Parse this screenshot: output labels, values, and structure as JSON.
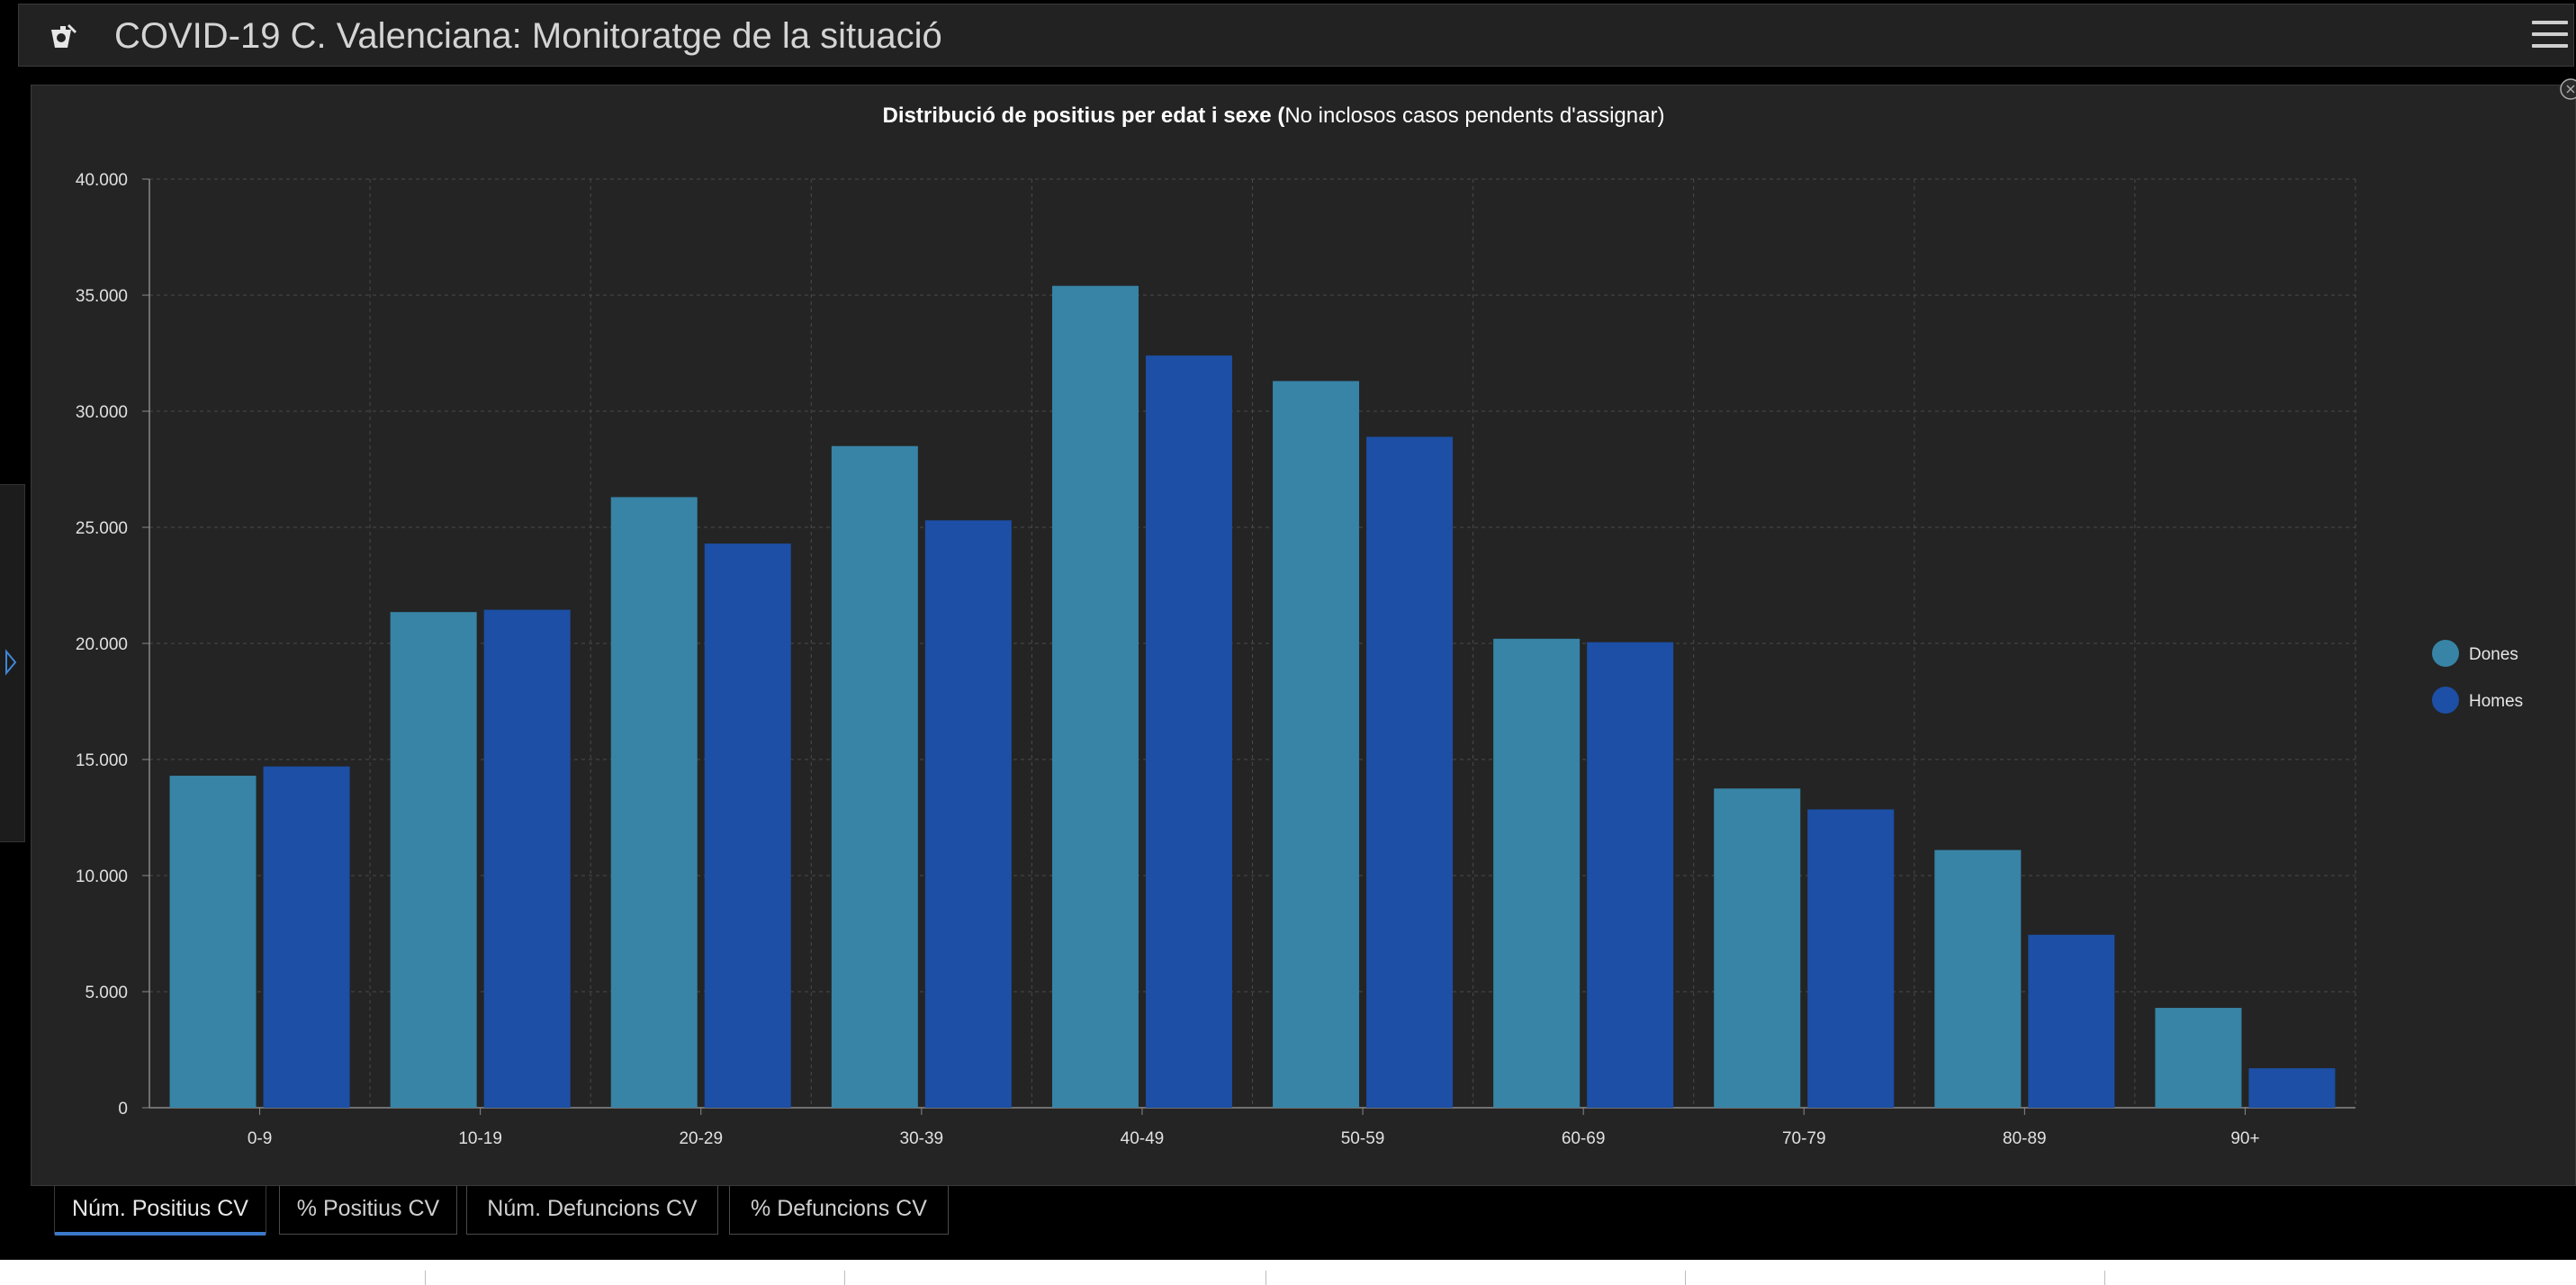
{
  "header": {
    "title": "COVID-19 C. Valenciana: Monitoratge de la situació",
    "logo_icon": "covid-logo-icon",
    "menu_icon": "hamburger-menu-icon"
  },
  "panel": {
    "title_bold": "Distribució de positius per edat i sexe (",
    "title_normal": "No inclosos casos pendents d'assignar)"
  },
  "tabs": [
    {
      "label": "Núm. Positius CV",
      "active": true
    },
    {
      "label": "% Positius CV",
      "active": false
    },
    {
      "label": "Núm. Defuncions CV",
      "active": false
    },
    {
      "label": "% Defuncions CV",
      "active": false
    }
  ],
  "chart_data": {
    "type": "bar",
    "categories": [
      "0-9",
      "10-19",
      "20-29",
      "30-39",
      "40-49",
      "50-59",
      "60-69",
      "70-79",
      "80-89",
      "90+"
    ],
    "series": [
      {
        "name": "Dones",
        "color": "#3784a6",
        "values": [
          14300,
          21350,
          26300,
          28500,
          35400,
          31300,
          20200,
          13750,
          11100,
          4300
        ]
      },
      {
        "name": "Homes",
        "color": "#1c4fa5",
        "values": [
          14700,
          21450,
          24300,
          25300,
          32400,
          28900,
          20050,
          12850,
          7450,
          1700
        ]
      }
    ],
    "ylim": [
      0,
      40000
    ],
    "y_ticks": [
      {
        "value": 0,
        "label": "0"
      },
      {
        "value": 5000,
        "label": "5.000"
      },
      {
        "value": 10000,
        "label": "10.000"
      },
      {
        "value": 15000,
        "label": "15.000"
      },
      {
        "value": 20000,
        "label": "20.000"
      },
      {
        "value": 25000,
        "label": "25.000"
      },
      {
        "value": 30000,
        "label": "30.000"
      },
      {
        "value": 35000,
        "label": "35.000"
      },
      {
        "value": 40000,
        "label": "40.000"
      }
    ],
    "xlabel": "",
    "ylabel": "",
    "grid": true,
    "legend_position": "right"
  }
}
